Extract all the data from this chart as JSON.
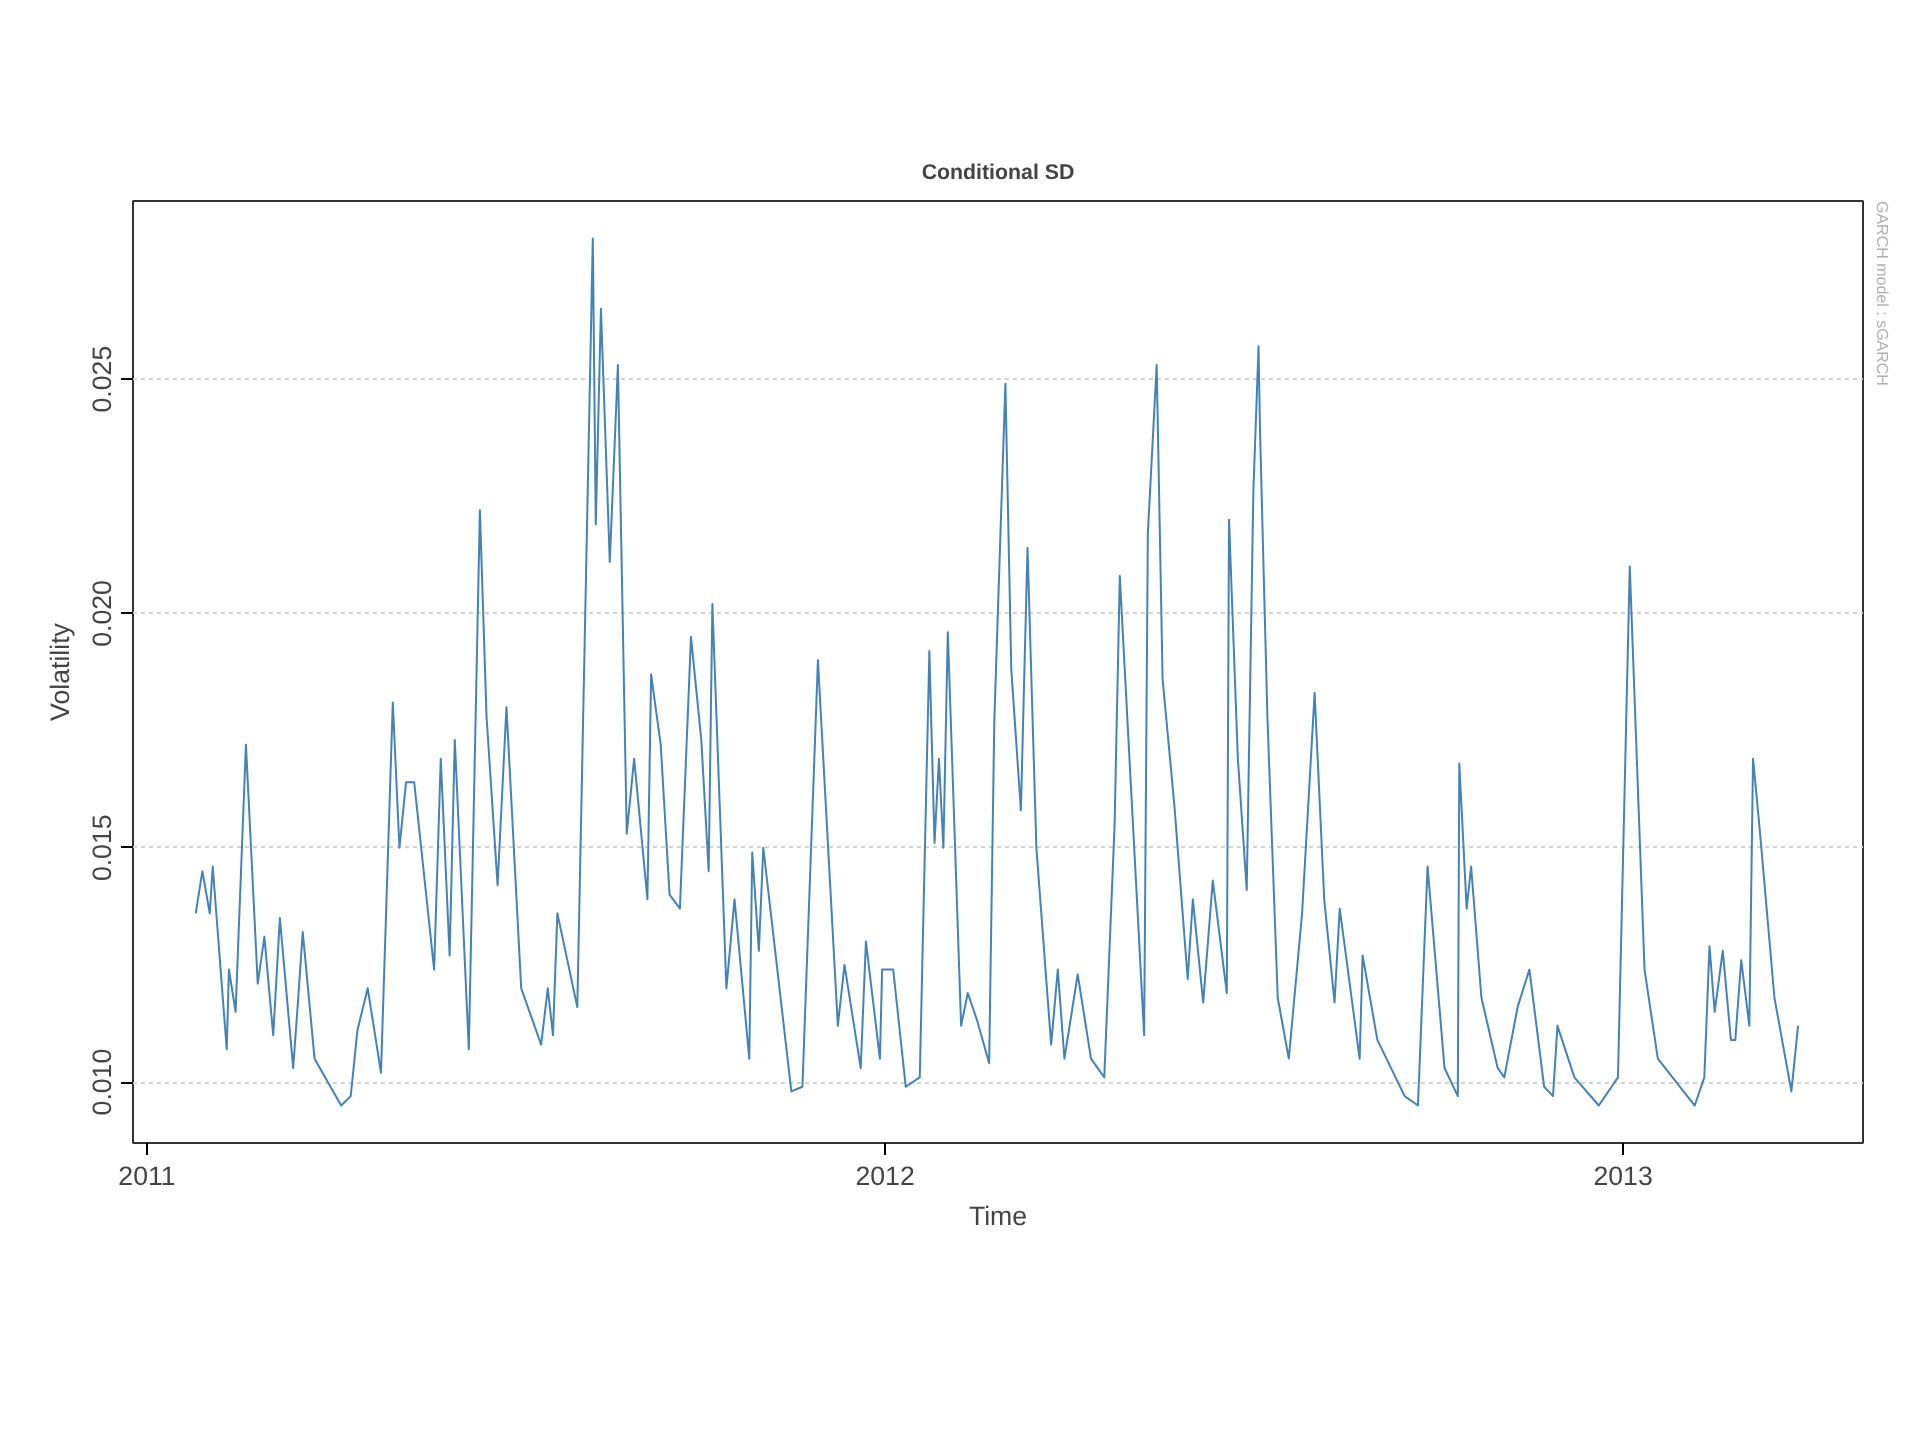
{
  "chart_data": {
    "type": "line",
    "title": "Conditional SD",
    "xlabel": "Time",
    "ylabel": "Volatility",
    "annotations": [
      "GARCH model : sGARCH"
    ],
    "x": [
      2011.066,
      2011.075,
      2011.085,
      2011.089,
      2011.108,
      2011.111,
      2011.12,
      2011.134,
      2011.15,
      2011.159,
      2011.171,
      2011.18,
      2011.198,
      2011.204,
      2011.211,
      2011.227,
      2011.263,
      2011.276,
      2011.285,
      2011.299,
      2011.317,
      2011.333,
      2011.342,
      2011.351,
      2011.362,
      2011.389,
      2011.398,
      2011.41,
      2011.417,
      2011.436,
      2011.451,
      2011.46,
      2011.475,
      2011.487,
      2011.507,
      2011.534,
      2011.543,
      2011.55,
      2011.556,
      2011.583,
      2011.593,
      2011.604,
      2011.608,
      2011.615,
      2011.627,
      2011.638,
      2011.65,
      2011.66,
      2011.678,
      2011.683,
      2011.696,
      2011.708,
      2011.722,
      2011.737,
      2011.751,
      2011.761,
      2011.766,
      2011.785,
      2011.796,
      2011.816,
      2011.82,
      2011.829,
      2011.835,
      2011.873,
      2011.888,
      2011.909,
      2011.936,
      2011.945,
      2011.967,
      2011.974,
      2011.993,
      2011.996,
      2012.011,
      2012.028,
      2012.047,
      2012.06,
      2012.067,
      2012.073,
      2012.079,
      2012.085,
      2012.103,
      2012.112,
      2012.125,
      2012.141,
      2012.148,
      2012.163,
      2012.171,
      2012.184,
      2012.193,
      2012.205,
      2012.225,
      2012.234,
      2012.243,
      2012.261,
      2012.279,
      2012.297,
      2012.311,
      2012.318,
      2012.351,
      2012.356,
      2012.368,
      2012.376,
      2012.392,
      2012.41,
      2012.417,
      2012.431,
      2012.444,
      2012.463,
      2012.466,
      2012.478,
      2012.49,
      2012.499,
      2012.506,
      2012.508,
      2012.518,
      2012.532,
      2012.547,
      2012.565,
      2012.582,
      2012.595,
      2012.609,
      2012.616,
      2012.643,
      2012.647,
      2012.667,
      2012.704,
      2012.722,
      2012.735,
      2012.758,
      2012.776,
      2012.778,
      2012.788,
      2012.794,
      2012.808,
      2012.83,
      2012.839,
      2012.857,
      2012.873,
      2012.893,
      2012.905,
      2012.911,
      2012.934,
      2012.967,
      2012.993,
      2013.009,
      2013.029,
      2013.047,
      2013.097,
      2013.11,
      2013.117,
      2013.124,
      2013.135,
      2013.146,
      2013.152,
      2013.16,
      2013.171,
      2013.176,
      2013.185,
      2013.205,
      2013.228,
      2013.237
    ],
    "series": [
      {
        "color": "#4682b4",
        "values": [
          0.0136,
          0.0145,
          0.0136,
          0.0146,
          0.0107,
          0.0124,
          0.0115,
          0.0172,
          0.0121,
          0.0131,
          0.011,
          0.0135,
          0.0103,
          0.0116,
          0.0132,
          0.0105,
          0.0095,
          0.0097,
          0.0111,
          0.012,
          0.0102,
          0.0181,
          0.015,
          0.0164,
          0.0164,
          0.0124,
          0.0169,
          0.0127,
          0.0173,
          0.0107,
          0.0222,
          0.0178,
          0.0142,
          0.018,
          0.012,
          0.0108,
          0.012,
          0.011,
          0.0136,
          0.0116,
          0.0194,
          0.028,
          0.0219,
          0.0265,
          0.0211,
          0.0253,
          0.0153,
          0.0169,
          0.0139,
          0.0187,
          0.0172,
          0.014,
          0.0137,
          0.0195,
          0.0173,
          0.0145,
          0.0202,
          0.012,
          0.0139,
          0.0105,
          0.0149,
          0.0128,
          0.015,
          0.0098,
          0.0099,
          0.019,
          0.0112,
          0.0125,
          0.0103,
          0.013,
          0.0105,
          0.0124,
          0.0124,
          0.0099,
          0.0101,
          0.0192,
          0.0151,
          0.0169,
          0.015,
          0.0196,
          0.0112,
          0.0119,
          0.0113,
          0.0104,
          0.0177,
          0.0249,
          0.0188,
          0.0158,
          0.0214,
          0.015,
          0.0108,
          0.0124,
          0.0105,
          0.0123,
          0.0105,
          0.0101,
          0.0155,
          0.0208,
          0.011,
          0.0217,
          0.0253,
          0.0186,
          0.0159,
          0.0122,
          0.0139,
          0.0117,
          0.0143,
          0.0119,
          0.022,
          0.0169,
          0.0141,
          0.0226,
          0.0257,
          0.0239,
          0.0178,
          0.0118,
          0.0105,
          0.0136,
          0.0183,
          0.0139,
          0.0117,
          0.0137,
          0.0105,
          0.0127,
          0.0109,
          0.0097,
          0.0095,
          0.0146,
          0.0103,
          0.0097,
          0.0168,
          0.0137,
          0.0146,
          0.0118,
          0.0103,
          0.0101,
          0.0116,
          0.0124,
          0.0099,
          0.0097,
          0.0112,
          0.0101,
          0.0095,
          0.0101,
          0.021,
          0.0124,
          0.0105,
          0.0095,
          0.0101,
          0.0129,
          0.0115,
          0.0128,
          0.0109,
          0.0109,
          0.0126,
          0.0112,
          0.0169,
          0.0154,
          0.0118,
          0.0098,
          0.0112
        ]
      }
    ],
    "xlim": [
      2010.981,
      2013.325
    ],
    "ylim": [
      0.0087,
      0.0288
    ],
    "xticks": [
      2011,
      2012,
      2013
    ],
    "yticks": [
      {
        "value": 0.01,
        "label": "0.010"
      },
      {
        "value": 0.015,
        "label": "0.015"
      },
      {
        "value": 0.02,
        "label": "0.020"
      },
      {
        "value": 0.025,
        "label": "0.025"
      }
    ],
    "grid": "y",
    "line_style": "solid"
  }
}
